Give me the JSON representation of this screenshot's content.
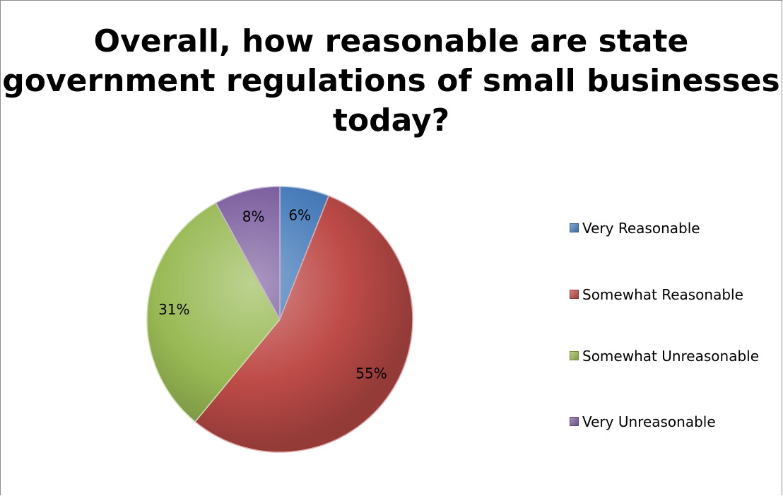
{
  "chart_data": {
    "type": "pie",
    "title": "Overall, how reasonable are state government regulations of small businesses today?",
    "title_lines": [
      "Overall, how reasonable are state",
      "government regulations of small businesses",
      "today?"
    ],
    "categories": [
      "Very Reasonable",
      "Somewhat Reasonable",
      "Somewhat Unreasonable",
      "Very Unreasonable"
    ],
    "values": [
      6,
      55,
      31,
      8
    ],
    "value_labels": [
      "6%",
      "55%",
      "31%",
      "8%"
    ],
    "colors": [
      "#4a7ebb",
      "#be4b48",
      "#98b954",
      "#7d60a0"
    ],
    "legend_position": "right",
    "start": "top, clockwise"
  }
}
